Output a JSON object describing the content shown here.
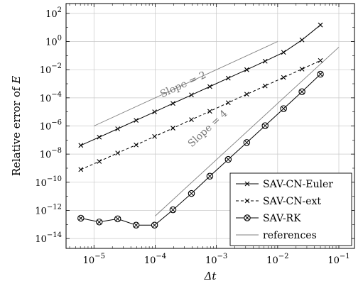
{
  "chart_data": {
    "type": "line",
    "xscale": "log",
    "yscale": "log",
    "xlabel_main": "Δt",
    "ylabel_main": "Relative error of ",
    "ylabel_var": "E",
    "xlim": [
      3.5e-06,
      0.18
    ],
    "ylim": [
      2e-15,
      500
    ],
    "grid": true,
    "legend_placement": "bottom-right",
    "x_ticks": [
      {
        "value": 1e-05,
        "base": "10",
        "exp": "−5"
      },
      {
        "value": 0.0001,
        "base": "10",
        "exp": "−4"
      },
      {
        "value": 0.001,
        "base": "10",
        "exp": "−3"
      },
      {
        "value": 0.01,
        "base": "10",
        "exp": "−2"
      },
      {
        "value": 0.1,
        "base": "10",
        "exp": "−1"
      }
    ],
    "y_ticks": [
      {
        "value": 1e-14,
        "base": "10",
        "exp": "−14"
      },
      {
        "value": 1e-12,
        "base": "10",
        "exp": "−12"
      },
      {
        "value": 1e-10,
        "base": "10",
        "exp": "−10"
      },
      {
        "value": 1e-08,
        "base": "10",
        "exp": "−8"
      },
      {
        "value": 1e-06,
        "base": "10",
        "exp": "−6"
      },
      {
        "value": 0.0001,
        "base": "10",
        "exp": "−4"
      },
      {
        "value": 0.01,
        "base": "10",
        "exp": "−2"
      },
      {
        "value": 1,
        "base": "10",
        "exp": "0"
      },
      {
        "value": 100,
        "base": "10",
        "exp": "2"
      }
    ],
    "series": [
      {
        "name": "SAV-CN-Euler",
        "marker": "x",
        "dash": "solid",
        "x": [
          6.1e-06,
          1.22e-05,
          2.44e-05,
          4.88e-05,
          9.77e-05,
          0.000195,
          0.000391,
          0.000781,
          0.00156,
          0.00313,
          0.00625,
          0.0125,
          0.025,
          0.05
        ],
        "y": [
          4.2e-08,
          1.6e-07,
          6.3e-07,
          2.5e-06,
          1e-05,
          4e-05,
          0.00016,
          0.00063,
          0.0025,
          0.01,
          0.04,
          0.17,
          1.3,
          15
        ]
      },
      {
        "name": "SAV-CN-ext",
        "marker": "x",
        "dash": "dashed",
        "x": [
          6.1e-06,
          1.22e-05,
          2.44e-05,
          4.88e-05,
          9.77e-05,
          0.000195,
          0.000391,
          0.000781,
          0.00156,
          0.00313,
          0.00625,
          0.0125,
          0.025,
          0.05
        ],
        "y": [
          8e-10,
          3e-09,
          1.2e-08,
          4.5e-08,
          1.8e-07,
          7e-07,
          2.8e-06,
          1.1e-05,
          4.5e-05,
          0.00018,
          0.0007,
          0.0028,
          0.011,
          0.045
        ]
      },
      {
        "name": "SAV-RK",
        "marker": "otimes",
        "dash": "solid",
        "x": [
          6.1e-06,
          1.22e-05,
          2.44e-05,
          4.88e-05,
          9.77e-05,
          0.000195,
          0.000391,
          0.000781,
          0.00156,
          0.00313,
          0.00625,
          0.0125,
          0.025,
          0.05
        ],
        "y": [
          2.8e-13,
          1.5e-13,
          2.5e-13,
          9e-14,
          9e-14,
          1.1e-12,
          1.6e-11,
          2.7e-10,
          4.2e-09,
          6.6e-08,
          1.05e-06,
          1.7e-05,
          0.00027,
          0.0048
        ]
      },
      {
        "name": "references",
        "marker": "none",
        "dash": "solid",
        "color": "#808080",
        "lines": [
          {
            "x": [
              1e-05,
              0.01
            ],
            "y": [
              1e-06,
              1
            ]
          },
          {
            "x": [
              0.0001,
              0.1
            ],
            "y": [
              4e-13,
              0.4
            ]
          }
        ]
      }
    ],
    "annotations": [
      {
        "text": "Slope = 2",
        "x": 0.0003,
        "y": 0.00055
      },
      {
        "text": "Slope = 4",
        "x": 0.00078,
        "y": 4.5e-07
      }
    ]
  }
}
